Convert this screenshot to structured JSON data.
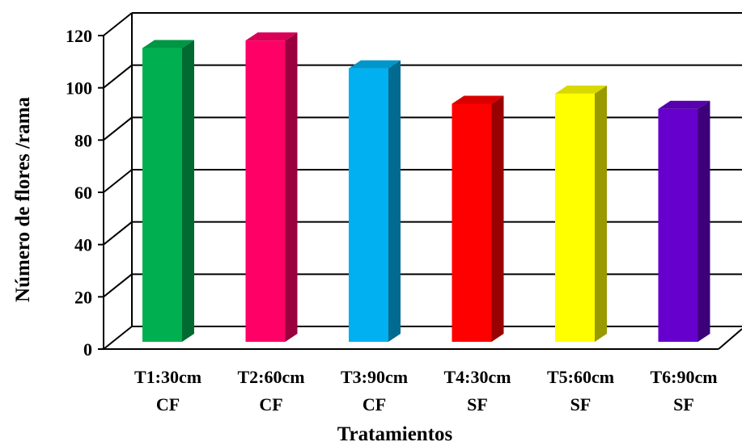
{
  "chart_data": {
    "type": "bar",
    "categories": [
      [
        "T1:30cm",
        "CF"
      ],
      [
        "T2:60cm",
        "CF"
      ],
      [
        "T3:90cm",
        "CF"
      ],
      [
        "T4:30cm",
        "SF"
      ],
      [
        "T5:60cm",
        "SF"
      ],
      [
        "T6:90cm",
        "SF"
      ]
    ],
    "values": [
      116,
      119,
      108,
      94,
      98,
      92
    ],
    "colors": [
      "#00b050",
      "#ff0066",
      "#00b0f0",
      "#ff0000",
      "#ffff00",
      "#6600cc"
    ],
    "xlabel": "Tratamientos",
    "ylabel": "Número de flores /rama",
    "ylim": [
      0,
      120
    ],
    "yticks": [
      0,
      20,
      40,
      60,
      80,
      100,
      120
    ],
    "grid": true,
    "style": "3d-bar",
    "legend": "none"
  }
}
